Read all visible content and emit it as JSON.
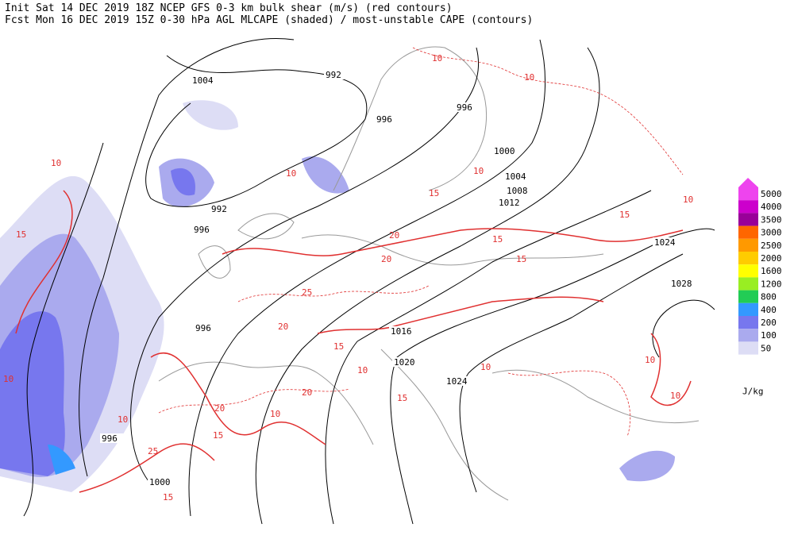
{
  "header": {
    "line1": "Init  Sat 14 DEC 2019 18Z  NCEP GFS 0-3 km bulk shear (m/s) (red contours)",
    "line2": "Fcst Mon 16 DEC 2019 15Z  0-30 hPa AGL MLCAPE (shaded) / most-unstable CAPE (contours)"
  },
  "legend": {
    "unit": "J/kg",
    "levels": [
      {
        "label": "5000",
        "color": "#ee44ee"
      },
      {
        "label": "4000",
        "color": "#cc00cc"
      },
      {
        "label": "3500",
        "color": "#990099"
      },
      {
        "label": "3000",
        "color": "#ff6600"
      },
      {
        "label": "2500",
        "color": "#ff9900"
      },
      {
        "label": "2000",
        "color": "#ffcc00"
      },
      {
        "label": "1600",
        "color": "#ffff00"
      },
      {
        "label": "1200",
        "color": "#99ee22"
      },
      {
        "label": "800",
        "color": "#22cc55"
      },
      {
        "label": "400",
        "color": "#3399ff"
      },
      {
        "label": "200",
        "color": "#7777ee"
      },
      {
        "label": "100",
        "color": "#aaaaee"
      },
      {
        "label": "50",
        "color": "#ddddf5"
      }
    ]
  },
  "isobar_labels": [
    "1004",
    "992",
    "996",
    "996",
    "1000",
    "1004",
    "1008",
    "1012",
    "992",
    "996",
    "1024",
    "1028",
    "996",
    "1016",
    "1020",
    "1024",
    "996",
    "1000"
  ],
  "shear_labels": [
    "10",
    "15",
    "10",
    "10",
    "10",
    "10",
    "10",
    "15",
    "20",
    "15",
    "15",
    "20",
    "25",
    "20",
    "15",
    "20",
    "15",
    "10",
    "20",
    "15",
    "10",
    "25",
    "15",
    "10",
    "10",
    "10",
    "15",
    "10",
    "10"
  ]
}
